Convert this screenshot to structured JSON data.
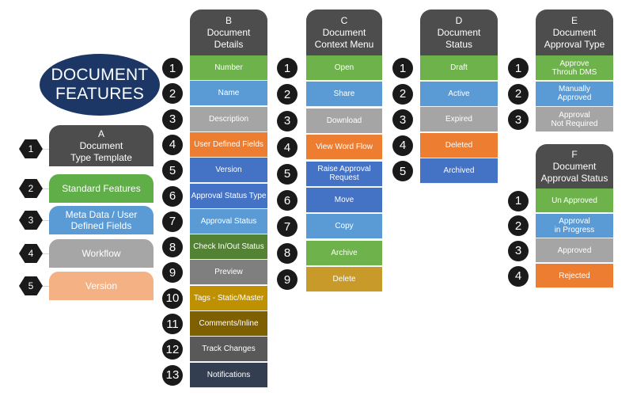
{
  "title": {
    "line1": "DOCUMENT",
    "line2": "FEATURES"
  },
  "colA": {
    "letter": "A",
    "title_line1": "Document",
    "title_line2": "Type Template",
    "items": [
      {
        "num": "1",
        "l1": "",
        "l2": "",
        "color": "#4d4d4d"
      },
      {
        "num": "2",
        "l1": "Standard Features",
        "l2": "",
        "color": "#5fae47"
      },
      {
        "num": "3",
        "l1": "Meta Data / User",
        "l2": "Defined Fields",
        "color": "#5b9bd5"
      },
      {
        "num": "4",
        "l1": "Workflow",
        "l2": "",
        "color": "#a6a6a6"
      },
      {
        "num": "5",
        "l1": "Version",
        "l2": "",
        "color": "#f4b183"
      }
    ]
  },
  "colB": {
    "letter": "B",
    "title_line1": "Document",
    "title_line2": "Details",
    "items": [
      {
        "num": "1",
        "l1": "Number",
        "l2": "",
        "color": "#6db24a"
      },
      {
        "num": "2",
        "l1": "Name",
        "l2": "",
        "color": "#5b9bd5"
      },
      {
        "num": "3",
        "l1": "Description",
        "l2": "",
        "color": "#a5a5a5"
      },
      {
        "num": "4",
        "l1": "User Defined Fields",
        "l2": "",
        "color": "#ed7d31"
      },
      {
        "num": "5",
        "l1": "Version",
        "l2": "",
        "color": "#4472c4"
      },
      {
        "num": "6",
        "l1": "Approval Status Type",
        "l2": "",
        "color": "#4472c4"
      },
      {
        "num": "7",
        "l1": "Approval Status",
        "l2": "",
        "color": "#5b9bd5"
      },
      {
        "num": "8",
        "l1": "Check In/Out Status",
        "l2": "",
        "color": "#548235"
      },
      {
        "num": "9",
        "l1": "Preview",
        "l2": "",
        "color": "#7f7f7f"
      },
      {
        "num": "10",
        "l1": "Tags - Static/Master",
        "l2": "",
        "color": "#bf9000"
      },
      {
        "num": "11",
        "l1": "Comments/Inline",
        "l2": "",
        "color": "#7f6000"
      },
      {
        "num": "12",
        "l1": "Track Changes",
        "l2": "",
        "color": "#595959"
      },
      {
        "num": "13",
        "l1": "Notifications",
        "l2": "",
        "color": "#333f50"
      }
    ]
  },
  "colC": {
    "letter": "C",
    "title_line1": "Document",
    "title_line2": "Context Menu",
    "items": [
      {
        "num": "1",
        "l1": "Open",
        "l2": "",
        "color": "#6db24a"
      },
      {
        "num": "2",
        "l1": "Share",
        "l2": "",
        "color": "#5b9bd5"
      },
      {
        "num": "3",
        "l1": "Download",
        "l2": "",
        "color": "#a5a5a5"
      },
      {
        "num": "4",
        "l1": "View Word Flow",
        "l2": "",
        "color": "#ed7d31"
      },
      {
        "num": "5",
        "l1": "Raise Approval",
        "l2": "Request",
        "color": "#4472c4"
      },
      {
        "num": "6",
        "l1": "Move",
        "l2": "",
        "color": "#4472c4"
      },
      {
        "num": "7",
        "l1": "Copy",
        "l2": "",
        "color": "#5b9bd5"
      },
      {
        "num": "8",
        "l1": "Archive",
        "l2": "",
        "color": "#6db24a"
      },
      {
        "num": "9",
        "l1": "Delete",
        "l2": "",
        "color": "#c79a2a"
      }
    ]
  },
  "colD": {
    "letter": "D",
    "title_line1": "Document",
    "title_line2": "Status",
    "items": [
      {
        "num": "1",
        "l1": "Draft",
        "l2": "",
        "color": "#6db24a"
      },
      {
        "num": "2",
        "l1": "Active",
        "l2": "",
        "color": "#5b9bd5"
      },
      {
        "num": "3",
        "l1": "Expired",
        "l2": "",
        "color": "#a5a5a5"
      },
      {
        "num": "4",
        "l1": "Deleted",
        "l2": "",
        "color": "#ed7d31"
      },
      {
        "num": "5",
        "l1": "Archived",
        "l2": "",
        "color": "#4472c4"
      }
    ]
  },
  "colE": {
    "letter": "E",
    "title_line1": "Document",
    "title_line2": "Approval Type",
    "items": [
      {
        "num": "1",
        "l1": "Approve",
        "l2": "Throuh DMS",
        "color": "#6db24a"
      },
      {
        "num": "2",
        "l1": "Manually",
        "l2": "Approved",
        "color": "#5b9bd5"
      },
      {
        "num": "3",
        "l1": "Approval",
        "l2": "Not Required",
        "color": "#a5a5a5"
      }
    ]
  },
  "colF": {
    "letter": "F",
    "title_line1": "Document",
    "title_line2": "Approval Status",
    "items": [
      {
        "num": "1",
        "l1": "Un Approved",
        "l2": "",
        "color": "#6db24a"
      },
      {
        "num": "2",
        "l1": "Approval",
        "l2": "in Progress",
        "color": "#5b9bd5"
      },
      {
        "num": "3",
        "l1": "Approved",
        "l2": "",
        "color": "#a5a5a5"
      },
      {
        "num": "4",
        "l1": "Rejected",
        "l2": "",
        "color": "#ed7d31"
      }
    ]
  }
}
